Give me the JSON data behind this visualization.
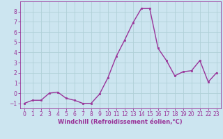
{
  "x": [
    0,
    1,
    2,
    3,
    4,
    5,
    6,
    7,
    8,
    9,
    10,
    11,
    12,
    13,
    14,
    15,
    16,
    17,
    18,
    19,
    20,
    21,
    22,
    23
  ],
  "y": [
    -1,
    -0.7,
    -0.7,
    0.0,
    0.1,
    -0.5,
    -0.7,
    -1.0,
    -1.0,
    -0.1,
    1.5,
    3.6,
    5.2,
    6.9,
    8.3,
    8.3,
    4.4,
    3.2,
    1.7,
    2.1,
    2.2,
    3.2,
    1.1,
    2.0
  ],
  "line_color": "#993399",
  "marker": "s",
  "markersize": 2.0,
  "linewidth": 1.0,
  "xlabel": "Windchill (Refroidissement éolien,°C)",
  "xlabel_fontsize": 6.0,
  "xlim": [
    -0.5,
    23.5
  ],
  "ylim": [
    -1.5,
    9.0
  ],
  "yticks": [
    -1,
    0,
    1,
    2,
    3,
    4,
    5,
    6,
    7,
    8
  ],
  "xticks": [
    0,
    1,
    2,
    3,
    4,
    5,
    6,
    7,
    8,
    9,
    10,
    11,
    12,
    13,
    14,
    15,
    16,
    17,
    18,
    19,
    20,
    21,
    22,
    23
  ],
  "tick_fontsize": 5.5,
  "background_color": "#cce5f0",
  "grid_color": "#b0d0d8",
  "plot_bg_color": "#cce5f0"
}
